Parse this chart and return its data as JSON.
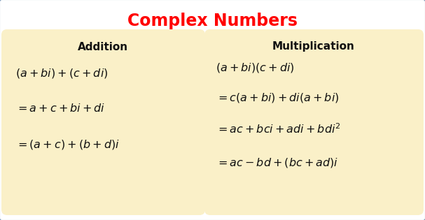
{
  "title": "Complex Numbers",
  "title_color": "#FF0000",
  "title_fontsize": 17,
  "bg_color": "#FFFFFF",
  "box_color": "#FAF0C8",
  "box_edge_color": "#6B8CAE",
  "addition_header": "Addition",
  "multiplication_header": "Multiplication",
  "text_color": "#111111",
  "header_fontsize": 11,
  "formula_fontsize": 11.5,
  "addition_formulas": [
    "$\\left(a+bi\\right)+\\left(c+di\\right)$",
    "$=a+c+bi+di$",
    "$=\\left(a+c\\right)+\\left(b+d\\right)i$"
  ],
  "multiplication_formulas": [
    "$\\left(a+bi\\right)\\left(c+di\\right)$",
    "$=c\\left(a+bi\\right)+di\\left(a+bi\\right)$",
    "$=ac+bci+adi+bdi^{2}$",
    "$=ac-bd+\\left(bc+ad\\right)i$"
  ]
}
